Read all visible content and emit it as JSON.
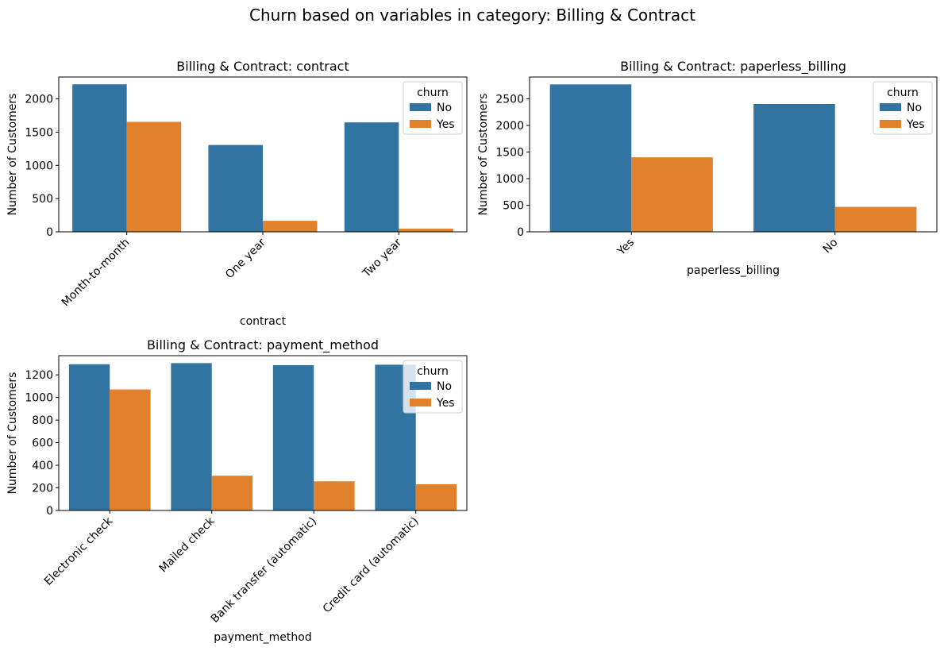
{
  "figure_title": "Churn based on variables in category: Billing & Contract",
  "colors": {
    "No": "#3274a1",
    "Yes": "#e1812c",
    "axis": "#000000",
    "legend_border": "#cccccc"
  },
  "chart_data": [
    {
      "type": "bar",
      "title": "Billing & Contract: contract",
      "xlabel": "contract",
      "ylabel": "Number of Customers",
      "categories": [
        "Month-to-month",
        "One year",
        "Two year"
      ],
      "series": [
        {
          "name": "No",
          "values": [
            2220,
            1307,
            1647
          ]
        },
        {
          "name": "Yes",
          "values": [
            1655,
            166,
            48
          ]
        }
      ],
      "ylim": [
        0,
        2330
      ],
      "yticks": [
        0,
        500,
        1000,
        1500,
        2000
      ],
      "x_tick_rotation": 45,
      "legend": {
        "title": "churn",
        "entries": [
          "No",
          "Yes"
        ],
        "position": "top-right"
      },
      "grid": false
    },
    {
      "type": "bar",
      "title": "Billing & Contract: paperless_billing",
      "xlabel": "paperless_billing",
      "ylabel": "Number of Customers",
      "categories": [
        "Yes",
        "No"
      ],
      "series": [
        {
          "name": "No",
          "values": [
            2771,
            2403
          ]
        },
        {
          "name": "Yes",
          "values": [
            1400,
            469
          ]
        }
      ],
      "ylim": [
        0,
        2910
      ],
      "yticks": [
        0,
        500,
        1000,
        1500,
        2000,
        2500
      ],
      "x_tick_rotation": 45,
      "legend": {
        "title": "churn",
        "entries": [
          "No",
          "Yes"
        ],
        "position": "top-right"
      },
      "grid": false
    },
    {
      "type": "bar",
      "title": "Billing & Contract: payment_method",
      "xlabel": "payment_method",
      "ylabel": "Number of Customers",
      "categories": [
        "Electronic check",
        "Mailed check",
        "Bank transfer (automatic)",
        "Credit card (automatic)"
      ],
      "series": [
        {
          "name": "No",
          "values": [
            1294,
            1304,
            1286,
            1290
          ]
        },
        {
          "name": "Yes",
          "values": [
            1071,
            308,
            258,
            232
          ]
        }
      ],
      "ylim": [
        0,
        1370
      ],
      "yticks": [
        0,
        200,
        400,
        600,
        800,
        1000,
        1200
      ],
      "x_tick_rotation": 45,
      "legend": {
        "title": "churn",
        "entries": [
          "No",
          "Yes"
        ],
        "position": "top-right"
      },
      "grid": false
    }
  ]
}
